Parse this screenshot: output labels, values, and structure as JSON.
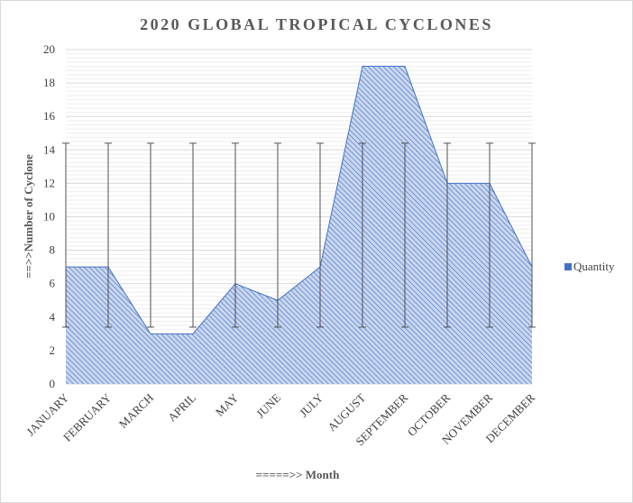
{
  "chart_data": {
    "type": "area",
    "title": "2020 GLOBAL TROPICAL CYCLONES",
    "xlabel": "=====>> Month",
    "ylabel": "==>>Number of Cyclone",
    "categories": [
      "JANUARY",
      "FEBRUARY",
      "MARCH",
      "APRIL",
      "MAY",
      "JUNE",
      "JULY",
      "AUGUST",
      "SEPTEMBER",
      "OCTOBER",
      "NOVEMBER",
      "DECEMBER"
    ],
    "series": [
      {
        "name": "Quantity",
        "values": [
          7,
          7,
          3,
          3,
          6,
          5,
          7,
          19,
          19,
          12,
          12,
          7
        ]
      }
    ],
    "error_bars": {
      "low": 3.4,
      "high": 14.4
    },
    "ylim": [
      0,
      20
    ],
    "yticks": [
      0,
      2,
      4,
      6,
      8,
      10,
      12,
      14,
      16,
      18,
      20
    ],
    "grid": true,
    "legend_position": "right",
    "colors": {
      "area_fill": "#c9d6ee",
      "area_hatch": "#4472c4",
      "area_line": "#4472c4",
      "legend_swatch": "#4472c4",
      "error_bar": "#404040",
      "grid": "#d9d9d9"
    }
  }
}
